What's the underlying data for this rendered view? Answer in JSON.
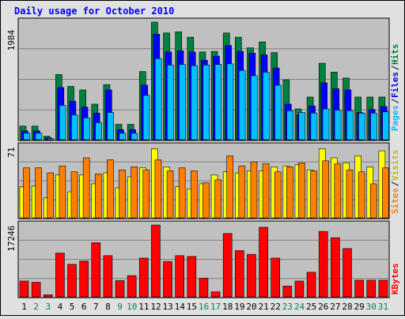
{
  "chart_data": [
    {
      "type": "bar",
      "title": "Daily usage for October 2010",
      "ytick_max": "1984",
      "ylim": [
        0,
        1984
      ],
      "categories": [
        "1",
        "2",
        "3",
        "4",
        "5",
        "6",
        "7",
        "8",
        "9",
        "10",
        "11",
        "12",
        "13",
        "14",
        "15",
        "16",
        "17",
        "18",
        "19",
        "20",
        "21",
        "22",
        "23",
        "24",
        "25",
        "26",
        "27",
        "28",
        "29",
        "30",
        "31"
      ],
      "weekend_days": [
        "2",
        "3",
        "9",
        "10",
        "16",
        "17",
        "23",
        "24",
        "30",
        "31"
      ],
      "series": [
        {
          "name": "Hits",
          "color": "#008040",
          "values": [
            230,
            230,
            60,
            1100,
            900,
            840,
            600,
            930,
            260,
            260,
            1150,
            1984,
            1800,
            1820,
            1730,
            1480,
            1490,
            1800,
            1730,
            1550,
            1650,
            1470,
            1010,
            520,
            720,
            1290,
            1140,
            1040,
            720,
            720,
            720
          ]
        },
        {
          "name": "Files",
          "color": "#0000ff",
          "values": [
            150,
            150,
            30,
            880,
            650,
            550,
            450,
            840,
            170,
            170,
            920,
            1780,
            1480,
            1500,
            1480,
            1340,
            1410,
            1590,
            1490,
            1460,
            1430,
            1210,
            600,
            420,
            570,
            960,
            860,
            840,
            460,
            510,
            560
          ]
        },
        {
          "name": "Pages",
          "color": "#00c0ff",
          "values": [
            110,
            110,
            20,
            580,
            420,
            370,
            290,
            460,
            110,
            110,
            750,
            1370,
            1260,
            1270,
            1250,
            1260,
            1270,
            1280,
            1170,
            1080,
            1140,
            920,
            490,
            460,
            450,
            520,
            500,
            490,
            450,
            450,
            470
          ]
        }
      ],
      "legend": [
        "Pages",
        "Files",
        "Hits"
      ]
    },
    {
      "type": "bar",
      "ytick_max": "71",
      "ylim": [
        0,
        71
      ],
      "categories": [
        "1",
        "2",
        "3",
        "4",
        "5",
        "6",
        "7",
        "8",
        "9",
        "10",
        "11",
        "12",
        "13",
        "14",
        "15",
        "16",
        "17",
        "18",
        "19",
        "20",
        "21",
        "22",
        "23",
        "24",
        "25",
        "26",
        "27",
        "28",
        "29",
        "30",
        "31"
      ],
      "series": [
        {
          "name": "Visits",
          "color": "#ffff00",
          "values": [
            31,
            32,
            20,
            43,
            26,
            43,
            34,
            45,
            30,
            41,
            50,
            69,
            51,
            31,
            29,
            34,
            43,
            46,
            45,
            47,
            47,
            51,
            52,
            53,
            48,
            69,
            60,
            55,
            62,
            51,
            67
          ]
        },
        {
          "name": "Sites",
          "color": "#ff8000",
          "values": [
            50,
            50,
            45,
            52,
            46,
            60,
            44,
            58,
            48,
            51,
            48,
            58,
            47,
            50,
            47,
            35,
            38,
            62,
            52,
            56,
            54,
            46,
            51,
            55,
            47,
            57,
            54,
            48,
            46,
            34,
            50
          ]
        }
      ],
      "legend": [
        "Sites",
        "Visits"
      ]
    },
    {
      "type": "bar",
      "ytick_max": "17246",
      "ylim": [
        0,
        17246
      ],
      "categories": [
        "1",
        "2",
        "3",
        "4",
        "5",
        "6",
        "7",
        "8",
        "9",
        "10",
        "11",
        "12",
        "13",
        "14",
        "15",
        "16",
        "17",
        "18",
        "19",
        "20",
        "21",
        "22",
        "23",
        "24",
        "25",
        "26",
        "27",
        "28",
        "29",
        "30",
        "31"
      ],
      "series": [
        {
          "name": "KBytes",
          "color": "#ff0000",
          "values": [
            3800,
            3500,
            500,
            10500,
            7800,
            8600,
            13000,
            9900,
            3900,
            5100,
            9300,
            17246,
            8500,
            9900,
            9700,
            4500,
            1200,
            15200,
            11100,
            10200,
            16700,
            9300,
            2600,
            3800,
            5900,
            15700,
            14200,
            11600,
            4000,
            4000,
            4000
          ]
        }
      ],
      "legend": [
        "KBytes"
      ]
    }
  ],
  "colors": {
    "background": "#e0e0e0",
    "panel": "#c0c0c0",
    "title": "#0000ff",
    "weekday_label": "#000000",
    "weekend_label": "#00805c"
  }
}
